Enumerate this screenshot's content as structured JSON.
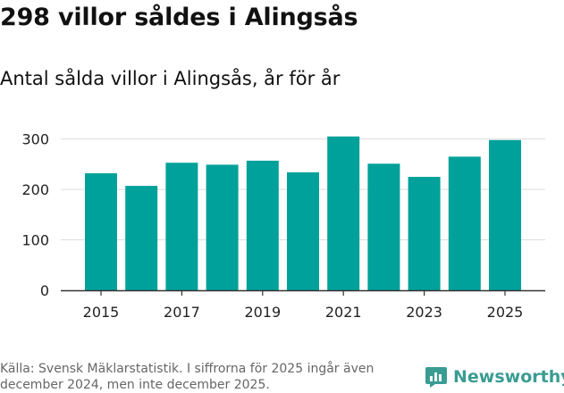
{
  "header": {
    "title": "298 villor såldes i Alingsås",
    "subtitle": "Antal sålda villor i Alingsås, år för år"
  },
  "footer": {
    "source": "Källa: Svensk Mäklarstatistik. I siffrorna för 2025 ingår även december 2024, men inte december 2025.",
    "brand": "Newsworthy"
  },
  "colors": {
    "bar": "#00a19a",
    "brand": "#3a9c92",
    "grid": "#dddddd",
    "axis": "#333333",
    "text": "#111111"
  },
  "chart_data": {
    "type": "bar",
    "title": "Antal sålda villor i Alingsås, år för år",
    "xlabel": "",
    "ylabel": "",
    "categories": [
      "2015",
      "2016",
      "2017",
      "2018",
      "2019",
      "2020",
      "2021",
      "2022",
      "2023",
      "2024",
      "2025"
    ],
    "values": [
      232,
      207,
      253,
      249,
      257,
      234,
      305,
      251,
      225,
      265,
      298
    ],
    "xticks": [
      "2015",
      "2017",
      "2019",
      "2021",
      "2023",
      "2025"
    ],
    "yticks": [
      0,
      100,
      200,
      300
    ],
    "ylim": [
      0,
      310
    ],
    "grid": true,
    "legend": "none"
  }
}
